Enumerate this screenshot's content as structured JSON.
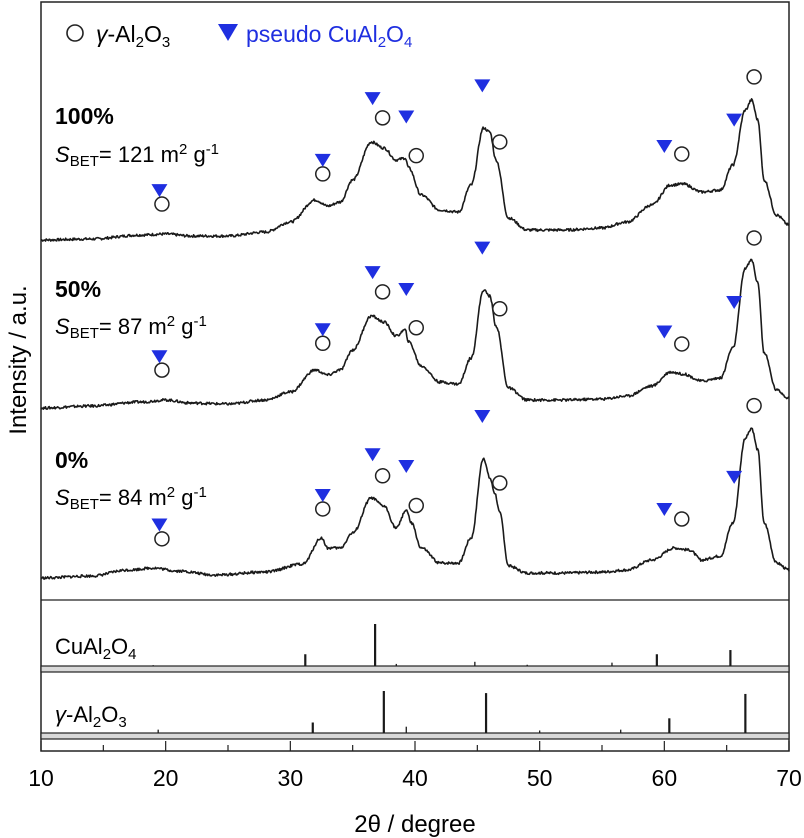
{
  "chart_data": {
    "type": "line",
    "title": "",
    "xlabel": "2θ / degree",
    "ylabel": "Intensity / a.u.",
    "xlim": [
      10,
      70
    ],
    "xticks": [
      10,
      20,
      30,
      40,
      50,
      60,
      70
    ],
    "legend": {
      "position": "top-left",
      "entries": [
        {
          "marker": "open-circle",
          "label": "γ-Al2O3",
          "label_prefix": "γ",
          "label_rest": "-Al",
          "sub1": "2",
          "mid": "O",
          "sub2": "3"
        },
        {
          "marker": "filled-triangle",
          "label": "pseudo CuAl2O4",
          "label_prefix": "pseudo CuAl",
          "sub1": "2",
          "mid": "O",
          "sub2": "4",
          "color": "#1f2fe0"
        }
      ]
    },
    "series": [
      {
        "name": "100%",
        "sbet_label": "S",
        "sbet_sub": "BET",
        "sbet_value": "= 121 m",
        "sbet_sup": "2",
        "sbet_unit": " g",
        "sbet_unit_sup": "-1",
        "S_BET_m2_per_g": 121,
        "profile": [
          [
            10,
            0
          ],
          [
            14,
            1
          ],
          [
            18,
            5
          ],
          [
            20,
            6
          ],
          [
            22,
            4
          ],
          [
            25,
            4
          ],
          [
            28,
            8
          ],
          [
            30,
            18
          ],
          [
            32,
            40
          ],
          [
            33,
            34
          ],
          [
            34,
            38
          ],
          [
            35,
            60
          ],
          [
            36.5,
            98
          ],
          [
            37.5,
            92
          ],
          [
            38.5,
            80
          ],
          [
            39.2,
            82
          ],
          [
            39.5,
            72
          ],
          [
            40.5,
            45
          ],
          [
            42,
            30
          ],
          [
            43.5,
            28
          ],
          [
            44.5,
            55
          ],
          [
            45.5,
            112
          ],
          [
            46,
            108
          ],
          [
            46.5,
            80
          ],
          [
            47.5,
            22
          ],
          [
            49,
            10
          ],
          [
            52,
            10
          ],
          [
            55,
            12
          ],
          [
            57,
            18
          ],
          [
            59,
            35
          ],
          [
            60.5,
            55
          ],
          [
            61.5,
            56
          ],
          [
            63,
            48
          ],
          [
            64.5,
            50
          ],
          [
            65.5,
            75
          ],
          [
            66.5,
            130
          ],
          [
            67,
            140
          ],
          [
            67.5,
            120
          ],
          [
            68,
            60
          ],
          [
            69,
            25
          ],
          [
            70,
            15
          ]
        ],
        "circle_markers_2theta": [
          19.7,
          32.6,
          37.4,
          40.1,
          46.8,
          61.4,
          67.2
        ],
        "triangle_markers_2theta": [
          19.5,
          32.6,
          36.6,
          39.3,
          45.4,
          60.0,
          65.6
        ]
      },
      {
        "name": "50%",
        "sbet_label": "S",
        "sbet_sub": "BET",
        "sbet_value": "= 87 m",
        "sbet_sup": "2",
        "sbet_unit": " g",
        "sbet_unit_sup": "-1",
        "S_BET_m2_per_g": 87,
        "profile": [
          [
            10,
            0
          ],
          [
            14,
            2
          ],
          [
            18,
            6
          ],
          [
            20,
            8
          ],
          [
            22,
            5
          ],
          [
            25,
            4
          ],
          [
            28,
            8
          ],
          [
            30,
            16
          ],
          [
            32,
            38
          ],
          [
            33,
            33
          ],
          [
            34,
            38
          ],
          [
            35,
            58
          ],
          [
            36.5,
            92
          ],
          [
            37.5,
            86
          ],
          [
            38.5,
            72
          ],
          [
            39.2,
            78
          ],
          [
            39.5,
            66
          ],
          [
            40.5,
            42
          ],
          [
            42,
            26
          ],
          [
            43.5,
            24
          ],
          [
            44.5,
            50
          ],
          [
            45.5,
            118
          ],
          [
            46,
            112
          ],
          [
            46.5,
            82
          ],
          [
            47.5,
            20
          ],
          [
            49,
            8
          ],
          [
            52,
            8
          ],
          [
            55,
            9
          ],
          [
            57,
            12
          ],
          [
            59,
            22
          ],
          [
            60.5,
            36
          ],
          [
            61.5,
            34
          ],
          [
            63,
            27
          ],
          [
            64.5,
            30
          ],
          [
            65.5,
            60
          ],
          [
            66.5,
            140
          ],
          [
            67,
            148
          ],
          [
            67.5,
            125
          ],
          [
            68,
            55
          ],
          [
            69,
            18
          ],
          [
            70,
            10
          ]
        ],
        "circle_markers_2theta": [
          19.7,
          32.6,
          37.4,
          40.1,
          46.8,
          61.4,
          67.2
        ],
        "triangle_markers_2theta": [
          19.5,
          32.6,
          36.6,
          39.3,
          45.4,
          60.0,
          65.6
        ]
      },
      {
        "name": "0%",
        "sbet_label": "S",
        "sbet_sub": "BET",
        "sbet_value": "= 84 m",
        "sbet_sup": "2",
        "sbet_unit": " g",
        "sbet_unit_sup": "-1",
        "S_BET_m2_per_g": 84,
        "profile": [
          [
            10,
            0
          ],
          [
            14,
            2
          ],
          [
            17,
            8
          ],
          [
            19,
            10
          ],
          [
            21,
            7
          ],
          [
            24,
            3
          ],
          [
            28,
            6
          ],
          [
            31,
            14
          ],
          [
            32.5,
            40
          ],
          [
            33,
            30
          ],
          [
            34,
            30
          ],
          [
            35,
            45
          ],
          [
            36.5,
            80
          ],
          [
            37.5,
            72
          ],
          [
            38.5,
            50
          ],
          [
            39.3,
            68
          ],
          [
            39.7,
            55
          ],
          [
            40.5,
            30
          ],
          [
            42,
            15
          ],
          [
            43.5,
            15
          ],
          [
            44.5,
            40
          ],
          [
            45.5,
            120
          ],
          [
            46,
            100
          ],
          [
            46.4,
            85
          ],
          [
            46.8,
            65
          ],
          [
            47.5,
            12
          ],
          [
            49,
            5
          ],
          [
            52,
            5
          ],
          [
            55,
            6
          ],
          [
            57,
            8
          ],
          [
            59,
            18
          ],
          [
            60.8,
            30
          ],
          [
            62,
            28
          ],
          [
            63,
            18
          ],
          [
            64.5,
            22
          ],
          [
            65.5,
            55
          ],
          [
            66.5,
            140
          ],
          [
            67,
            150
          ],
          [
            67.5,
            128
          ],
          [
            68,
            55
          ],
          [
            69,
            15
          ],
          [
            70,
            8
          ]
        ],
        "circle_markers_2theta": [
          19.7,
          32.6,
          37.4,
          40.1,
          46.8,
          61.4,
          67.2
        ],
        "triangle_markers_2theta": [
          19.5,
          32.6,
          36.6,
          39.3,
          45.4,
          60.0,
          65.6
        ]
      }
    ],
    "reference_patterns": [
      {
        "name": "CuAl2O4",
        "label_prefix": "CuAl",
        "sub1": "2",
        "mid": "O",
        "sub2": "4",
        "peaks": [
          [
            19.0,
            2
          ],
          [
            31.2,
            28
          ],
          [
            36.8,
            100
          ],
          [
            38.5,
            5
          ],
          [
            44.8,
            10
          ],
          [
            49.0,
            3
          ],
          [
            55.8,
            8
          ],
          [
            59.4,
            28
          ],
          [
            65.3,
            38
          ]
        ]
      },
      {
        "name": "γ-Al2O3",
        "label_prefix": "γ",
        "label_rest": "-Al",
        "sub1": "2",
        "mid": "O",
        "sub2": "3",
        "peaks": [
          [
            19.4,
            8
          ],
          [
            31.8,
            25
          ],
          [
            37.5,
            100
          ],
          [
            39.3,
            15
          ],
          [
            45.7,
            95
          ],
          [
            50.0,
            6
          ],
          [
            56.5,
            8
          ],
          [
            60.4,
            35
          ],
          [
            66.5,
            93
          ]
        ]
      }
    ]
  }
}
